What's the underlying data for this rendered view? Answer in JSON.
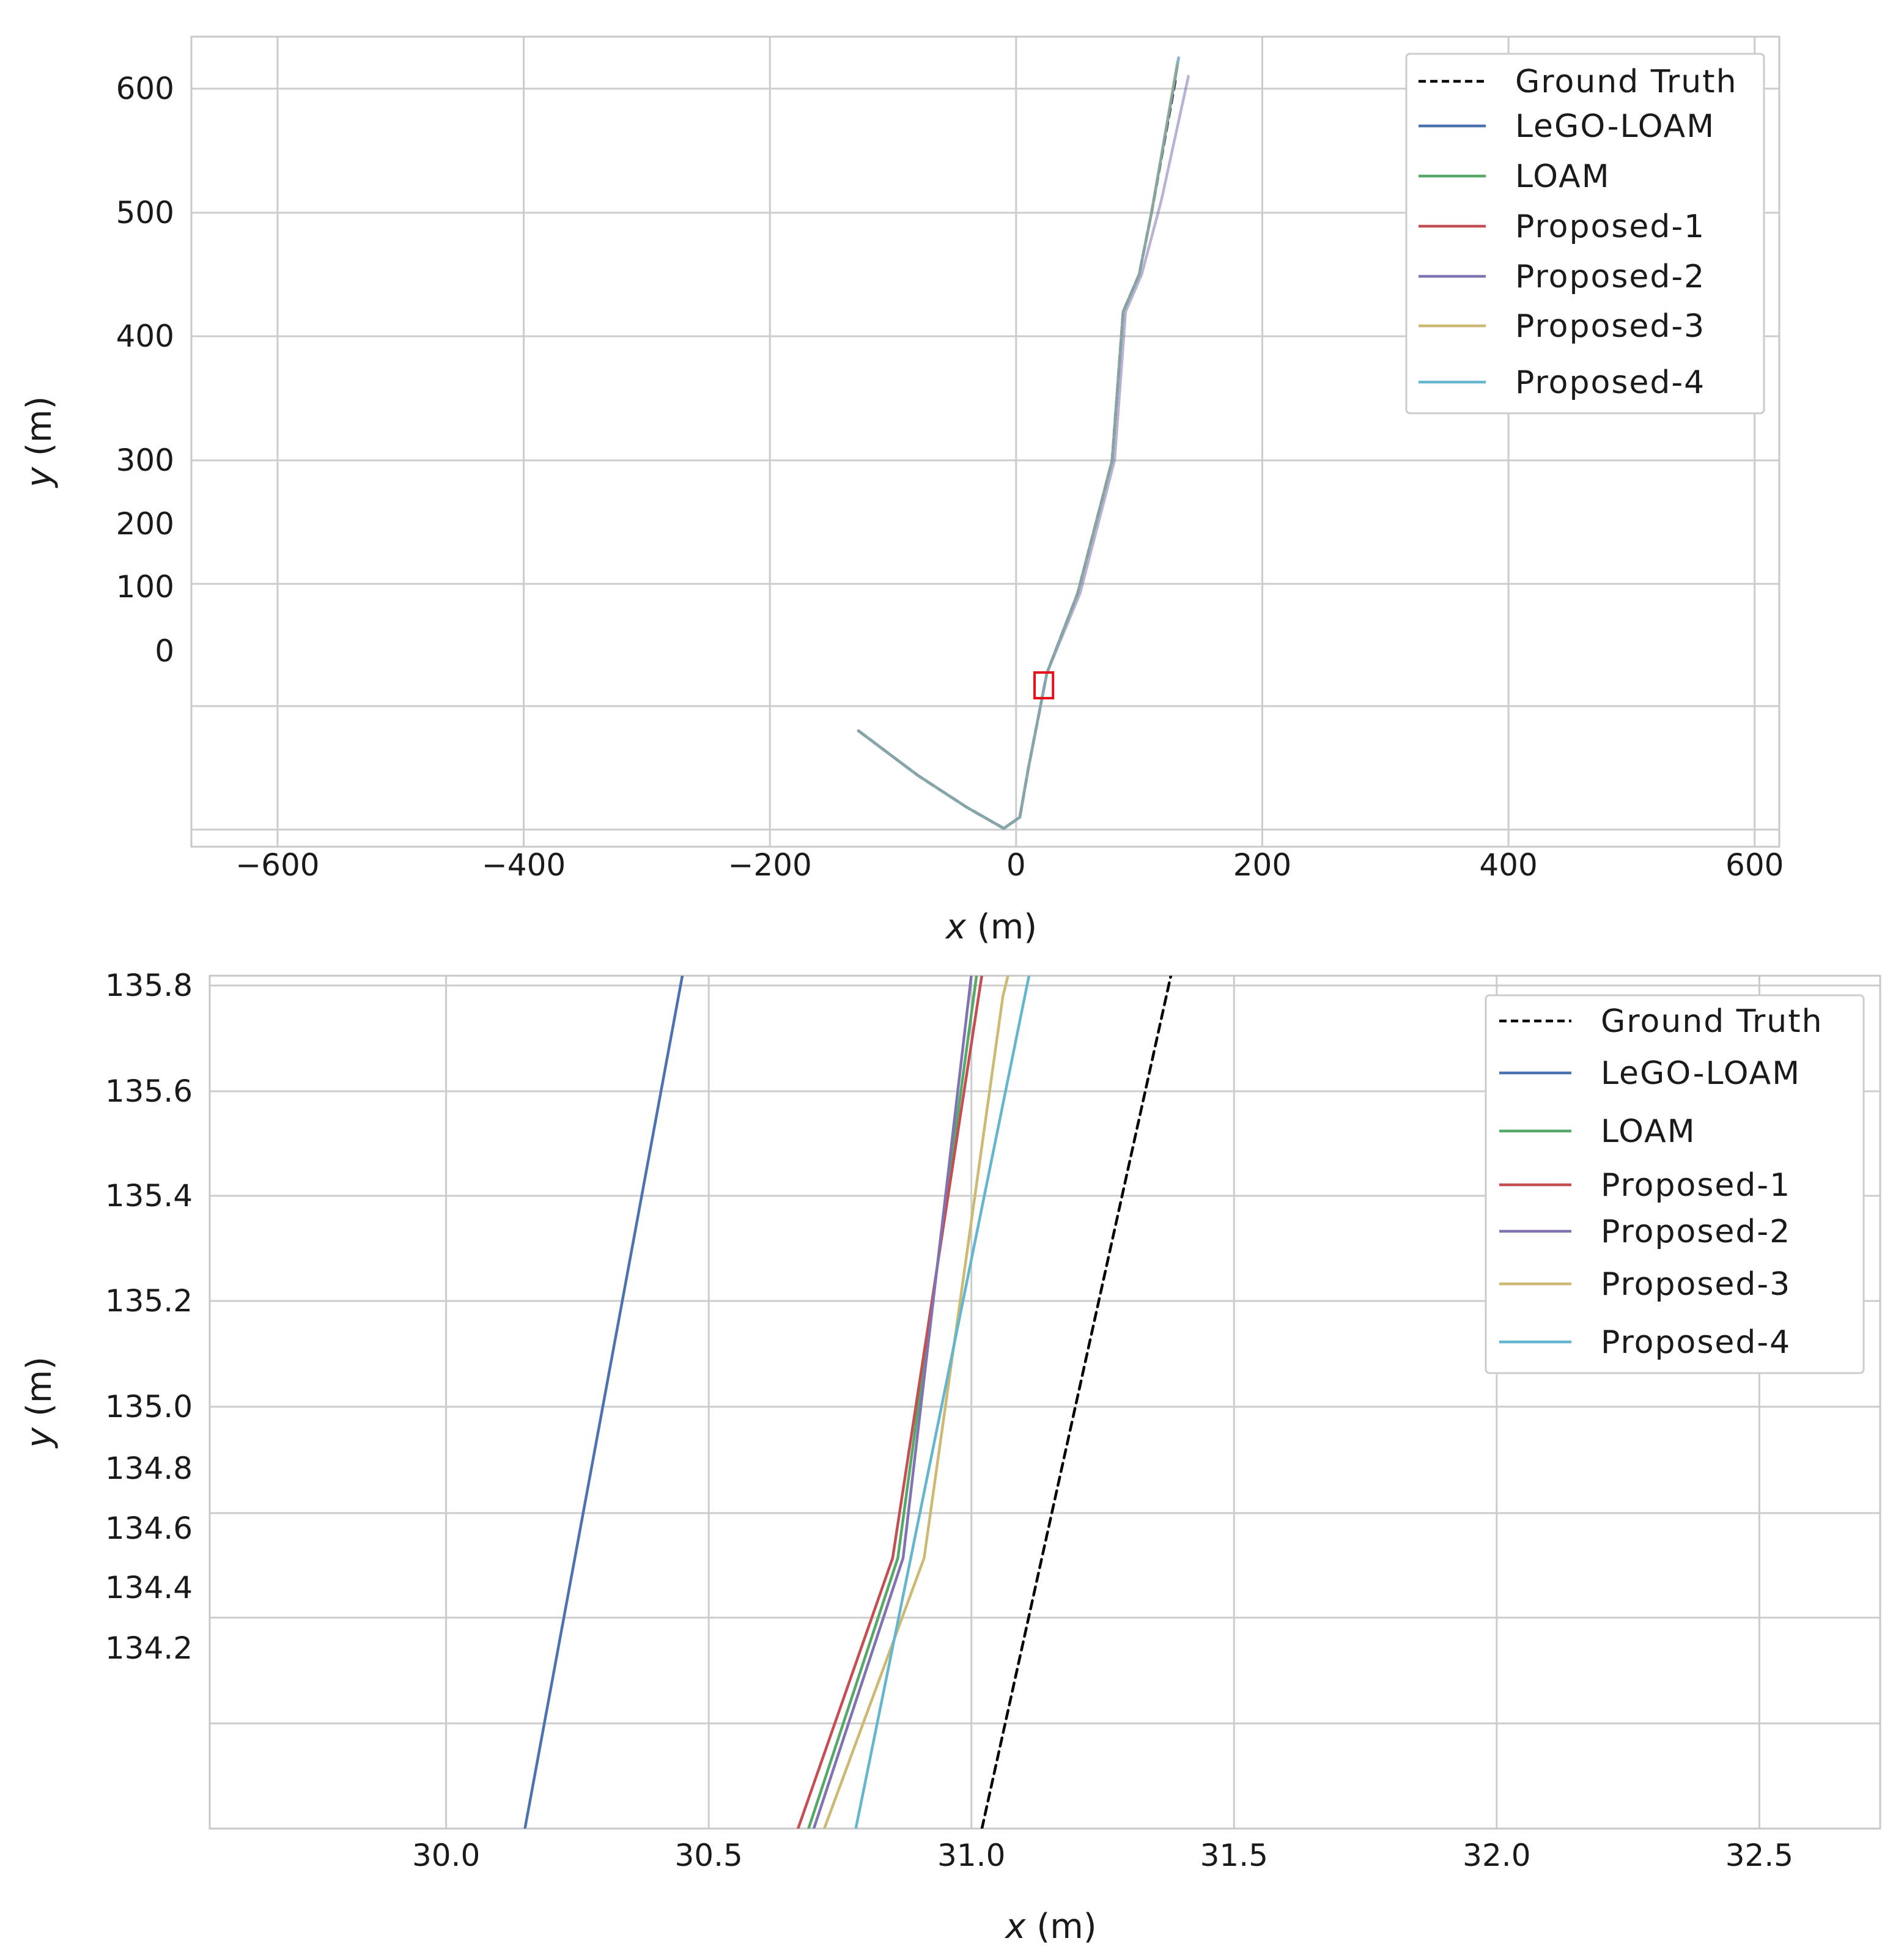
{
  "chart_data": [
    {
      "type": "line",
      "xlabel_var": "x",
      "xlabel_unit": " (m)",
      "ylabel_var": "y",
      "ylabel_unit": " (m)",
      "xlim": [
        -670,
        620
      ],
      "x_ticks": [
        {
          "value": -600,
          "label": "−600"
        },
        {
          "value": -400,
          "label": "−400"
        },
        {
          "value": -200,
          "label": "−200"
        },
        {
          "value": 0,
          "label": "0"
        },
        {
          "value": 200,
          "label": "200"
        },
        {
          "value": 400,
          "label": "400"
        },
        {
          "value": 600,
          "label": "600"
        }
      ],
      "y_ticks": [
        {
          "value": 600,
          "label": "600"
        },
        {
          "value": 500,
          "label": "500"
        },
        {
          "value": 400,
          "label": "400"
        },
        {
          "value": 300,
          "label": "300"
        },
        {
          "value": 200,
          "label": "200"
        },
        {
          "value": 100,
          "label": "100"
        },
        {
          "value": 0,
          "label": "0"
        }
      ],
      "grid": true,
      "legend_position": "top-right",
      "zoom_box": {
        "x0": 15,
        "x1": 30,
        "y0": -35,
        "y1": -15
      },
      "series": [
        {
          "name": "Ground Truth",
          "color": "#000000",
          "dash": true,
          "points": [
            [
              -128,
              -120
            ],
            [
              -80,
              -156
            ],
            [
              -40,
              -182
            ],
            [
              -10,
              -199
            ],
            [
              3,
              -190
            ],
            [
              10,
              -150
            ],
            [
              25,
              -40
            ],
            [
              50,
              90
            ],
            [
              70,
              240
            ],
            [
              78,
              300
            ],
            [
              87,
              420
            ],
            [
              100,
              450
            ],
            [
              110,
              500
            ],
            [
              130,
              610
            ]
          ]
        },
        {
          "name": "LeGO-LOAM",
          "color": "#4c72b0",
          "dash": false,
          "points": [
            [
              -128,
              -120
            ],
            [
              -80,
              -156
            ],
            [
              -40,
              -182
            ],
            [
              -10,
              -199
            ],
            [
              3,
              -190
            ],
            [
              10,
              -150
            ],
            [
              25,
              -40
            ],
            [
              50,
              90
            ],
            [
              70,
              240
            ],
            [
              78,
              300
            ],
            [
              87,
              420
            ],
            [
              100,
              450
            ],
            [
              110,
              500
            ],
            [
              132,
              625
            ]
          ]
        },
        {
          "name": "LOAM",
          "color": "#55a868",
          "dash": false,
          "points": [
            [
              -128,
              -120
            ],
            [
              -80,
              -156
            ],
            [
              -40,
              -182
            ],
            [
              -10,
              -199
            ],
            [
              3,
              -190
            ],
            [
              10,
              -150
            ],
            [
              25,
              -40
            ],
            [
              50,
              90
            ],
            [
              70,
              240
            ],
            [
              78,
              300
            ],
            [
              87,
              420
            ],
            [
              100,
              450
            ],
            [
              110,
              500
            ],
            [
              131,
              620
            ]
          ]
        },
        {
          "name": "Proposed-1",
          "color": "#c44e52",
          "dash": false,
          "points": [
            [
              -128,
              -120
            ],
            [
              -80,
              -156
            ],
            [
              -40,
              -182
            ],
            [
              -10,
              -199
            ],
            [
              3,
              -190
            ],
            [
              10,
              -150
            ],
            [
              25,
              -40
            ],
            [
              50,
              90
            ],
            [
              70,
              240
            ],
            [
              78,
              300
            ],
            [
              87,
              420
            ],
            [
              100,
              450
            ],
            [
              110,
              500
            ],
            [
              131,
              618
            ]
          ]
        },
        {
          "name": "Proposed-2",
          "color": "#8172b2",
          "dash": false,
          "points": [
            [
              -128,
              -120
            ],
            [
              -80,
              -156
            ],
            [
              -40,
              -182
            ],
            [
              -10,
              -199
            ],
            [
              3,
              -190
            ],
            [
              10,
              -150
            ],
            [
              25,
              -40
            ],
            [
              52,
              90
            ],
            [
              72,
              240
            ],
            [
              80,
              300
            ],
            [
              89,
              420
            ],
            [
              102,
              450
            ],
            [
              118,
              510
            ],
            [
              140,
              610
            ]
          ]
        },
        {
          "name": "Proposed-3",
          "color": "#ccb974",
          "dash": false,
          "points": [
            [
              -128,
              -120
            ],
            [
              -80,
              -156
            ],
            [
              -40,
              -182
            ],
            [
              -10,
              -199
            ],
            [
              3,
              -190
            ],
            [
              10,
              -150
            ],
            [
              25,
              -40
            ],
            [
              50,
              90
            ],
            [
              70,
              240
            ],
            [
              78,
              300
            ],
            [
              87,
              420
            ],
            [
              100,
              450
            ],
            [
              110,
              500
            ],
            [
              131,
              622
            ]
          ]
        },
        {
          "name": "Proposed-4",
          "color": "#64b5cd",
          "dash": false,
          "points": [
            [
              -128,
              -120
            ],
            [
              -80,
              -156
            ],
            [
              -40,
              -182
            ],
            [
              -10,
              -199
            ],
            [
              3,
              -190
            ],
            [
              10,
              -150
            ],
            [
              25,
              -40
            ],
            [
              50,
              90
            ],
            [
              70,
              240
            ],
            [
              78,
              300
            ],
            [
              87,
              420
            ],
            [
              100,
              450
            ],
            [
              110,
              500
            ],
            [
              132,
              624
            ]
          ]
        }
      ]
    },
    {
      "type": "line",
      "xlabel_var": "x",
      "xlabel_unit": " (m)",
      "ylabel_var": "y",
      "ylabel_unit": " (m)",
      "xlim": [
        29.55,
        32.73
      ],
      "x_ticks": [
        {
          "value": 30.0,
          "label": "30.0"
        },
        {
          "value": 30.5,
          "label": "30.5"
        },
        {
          "value": 31.0,
          "label": "31.0"
        },
        {
          "value": 31.5,
          "label": "31.5"
        },
        {
          "value": 32.0,
          "label": "32.0"
        },
        {
          "value": 32.5,
          "label": "32.5"
        }
      ],
      "y_ticks": [
        {
          "value": 135.8,
          "label": "135.8"
        },
        {
          "value": 135.6,
          "label": "135.6"
        },
        {
          "value": 135.4,
          "label": "135.4"
        },
        {
          "value": 135.2,
          "label": "135.2"
        },
        {
          "value": 135.0,
          "label": "135.0"
        },
        {
          "value": 134.8,
          "label": "134.8"
        },
        {
          "value": 134.6,
          "label": "134.6"
        },
        {
          "value": 134.4,
          "label": "134.4"
        },
        {
          "value": 134.2,
          "label": "134.2"
        }
      ],
      "grid": true,
      "legend_position": "top-right",
      "series": [
        {
          "name": "Ground Truth",
          "color": "#000000",
          "dash": true,
          "points": [
            [
              31.02,
              133.8
            ],
            [
              31.38,
              135.82
            ]
          ]
        },
        {
          "name": "LeGO-LOAM",
          "color": "#4c72b0",
          "dash": false,
          "points": [
            [
              30.15,
              133.8
            ],
            [
              30.45,
              135.82
            ]
          ]
        },
        {
          "name": "LOAM",
          "color": "#55a868",
          "dash": false,
          "points": [
            [
              30.69,
              133.8
            ],
            [
              30.86,
              134.5
            ],
            [
              31.01,
              135.82
            ]
          ]
        },
        {
          "name": "Proposed-1",
          "color": "#c44e52",
          "dash": false,
          "points": [
            [
              30.67,
              133.8
            ],
            [
              30.85,
              134.5
            ],
            [
              31.02,
              135.82
            ]
          ]
        },
        {
          "name": "Proposed-2",
          "color": "#8172b2",
          "dash": false,
          "points": [
            [
              30.7,
              133.8
            ],
            [
              30.87,
              134.5
            ],
            [
              31.0,
              135.82
            ]
          ]
        },
        {
          "name": "Proposed-3",
          "color": "#ccb974",
          "dash": false,
          "points": [
            [
              30.72,
              133.8
            ],
            [
              30.91,
              134.5
            ],
            [
              31.06,
              135.78
            ],
            [
              31.07,
              135.82
            ]
          ]
        },
        {
          "name": "Proposed-4",
          "color": "#64b5cd",
          "dash": false,
          "points": [
            [
              30.78,
              133.8
            ],
            [
              31.11,
              135.82
            ]
          ]
        }
      ]
    }
  ]
}
